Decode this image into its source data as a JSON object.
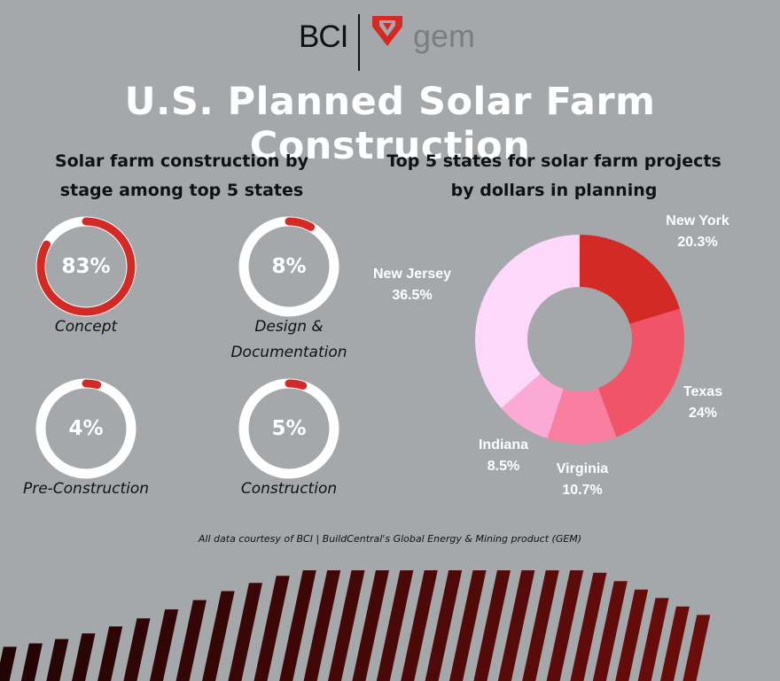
{
  "brand": {
    "bci": "BCI",
    "gem": "gem",
    "gem_color": "#d42a25"
  },
  "title": "U.S. Planned Solar Farm Construction",
  "left_panel": {
    "subtitle_line1": "Solar farm construction by",
    "subtitle_line2": "stage among top 5 states",
    "ring_color": "#ffffff",
    "arc_color": "#d42a25"
  },
  "right_panel": {
    "subtitle_line1": "Top 5 states for solar farm projects",
    "subtitle_line2": "by dollars in planning"
  },
  "credit": "All data courtesy of BCI | BuildCentral's Global Energy & Mining product (GEM)",
  "chart_data": [
    {
      "type": "radial-progress",
      "title": "Solar farm construction by stage among top 5 states",
      "items": [
        {
          "label": "Concept",
          "value": 83,
          "display": "83%"
        },
        {
          "label_line1": "Design &",
          "label_line2": "Documentation",
          "label": "Design & Documentation",
          "value": 8,
          "display": "8%"
        },
        {
          "label": "Pre-Construction",
          "value": 4,
          "display": "4%"
        },
        {
          "label": "Construction",
          "value": 5,
          "display": "5%"
        }
      ]
    },
    {
      "type": "pie",
      "donut": true,
      "title": "Top 5 states for solar farm projects by dollars in planning",
      "slices": [
        {
          "name": "New York",
          "value": 20.3,
          "display": "20.3%",
          "color": "#d42a25"
        },
        {
          "name": "Texas",
          "value": 24,
          "display": "24%",
          "color": "#f05469"
        },
        {
          "name": "Virginia",
          "value": 10.7,
          "display": "10.7%",
          "color": "#f97ea0"
        },
        {
          "name": "Indiana",
          "value": 8.5,
          "display": "8.5%",
          "color": "#fcaad5"
        },
        {
          "name": "New Jersey",
          "value": 36.5,
          "display": "36.5%",
          "color": "#fdd8fb"
        }
      ]
    }
  ]
}
